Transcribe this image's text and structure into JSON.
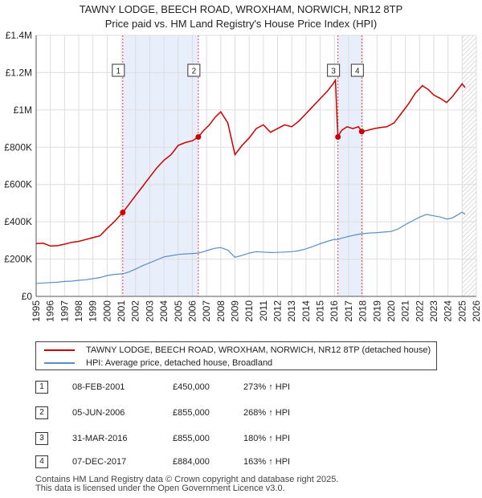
{
  "header": {
    "title_line1": "TAWNY LODGE, BEECH ROAD, WROXHAM, NORWICH, NR12 8TP",
    "title_line2": "Price paid vs. HM Land Registry's House Price Index (HPI)"
  },
  "chart_data": {
    "type": "line",
    "x_range": [
      1995,
      2026
    ],
    "ylim": [
      0,
      1400000
    ],
    "y_ticks": [
      {
        "value": 0,
        "label": "£0"
      },
      {
        "value": 200000,
        "label": "£200K"
      },
      {
        "value": 400000,
        "label": "£400K"
      },
      {
        "value": 600000,
        "label": "£600K"
      },
      {
        "value": 800000,
        "label": "£800K"
      },
      {
        "value": 1000000,
        "label": "£1M"
      },
      {
        "value": 1200000,
        "label": "£1.2M"
      },
      {
        "value": 1400000,
        "label": "£1.4M"
      }
    ],
    "x_ticks": [
      "1995",
      "1996",
      "1997",
      "1998",
      "1999",
      "2000",
      "2001",
      "2002",
      "2003",
      "2004",
      "2005",
      "2006",
      "2007",
      "2008",
      "2009",
      "2010",
      "2011",
      "2012",
      "2013",
      "2014",
      "2015",
      "2016",
      "2017",
      "2018",
      "2019",
      "2020",
      "2021",
      "2022",
      "2023",
      "2024",
      "2025",
      "2026"
    ],
    "grid": true,
    "shaded_ranges": [
      [
        2001.1,
        2006.42
      ],
      [
        2016.25,
        2017.93
      ]
    ],
    "future_start": 2025.0,
    "series": [
      {
        "name": "TAWNY LODGE, BEECH ROAD, WROXHAM, NORWICH, NR12 8TP (detached house)",
        "color": "#cc0000",
        "points": [
          [
            1995.0,
            283000
          ],
          [
            1995.5,
            285000
          ],
          [
            1996.0,
            270000
          ],
          [
            1996.5,
            272000
          ],
          [
            1997.0,
            280000
          ],
          [
            1997.5,
            290000
          ],
          [
            1998.0,
            295000
          ],
          [
            1998.5,
            305000
          ],
          [
            1999.0,
            315000
          ],
          [
            1999.5,
            325000
          ],
          [
            2000.0,
            365000
          ],
          [
            2000.5,
            400000
          ],
          [
            2001.1,
            450000
          ],
          [
            2001.5,
            490000
          ],
          [
            2002.0,
            540000
          ],
          [
            2002.5,
            590000
          ],
          [
            2003.0,
            640000
          ],
          [
            2003.5,
            690000
          ],
          [
            2004.0,
            730000
          ],
          [
            2004.5,
            760000
          ],
          [
            2005.0,
            810000
          ],
          [
            2005.5,
            825000
          ],
          [
            2006.0,
            835000
          ],
          [
            2006.42,
            855000
          ],
          [
            2006.8,
            890000
          ],
          [
            2007.2,
            920000
          ],
          [
            2007.6,
            960000
          ],
          [
            2008.0,
            990000
          ],
          [
            2008.5,
            930000
          ],
          [
            2009.0,
            760000
          ],
          [
            2009.5,
            810000
          ],
          [
            2010.0,
            850000
          ],
          [
            2010.5,
            900000
          ],
          [
            2011.0,
            920000
          ],
          [
            2011.5,
            880000
          ],
          [
            2012.0,
            900000
          ],
          [
            2012.5,
            920000
          ],
          [
            2013.0,
            910000
          ],
          [
            2013.5,
            940000
          ],
          [
            2014.0,
            980000
          ],
          [
            2014.5,
            1020000
          ],
          [
            2015.0,
            1060000
          ],
          [
            2015.5,
            1100000
          ],
          [
            2015.9,
            1140000
          ],
          [
            2016.08,
            1160000
          ],
          [
            2016.15,
            1020000
          ],
          [
            2016.25,
            855000
          ],
          [
            2016.5,
            890000
          ],
          [
            2016.9,
            910000
          ],
          [
            2017.3,
            900000
          ],
          [
            2017.7,
            910000
          ],
          [
            2017.93,
            884000
          ],
          [
            2018.3,
            890000
          ],
          [
            2018.8,
            900000
          ],
          [
            2019.2,
            905000
          ],
          [
            2019.7,
            910000
          ],
          [
            2020.2,
            930000
          ],
          [
            2020.7,
            980000
          ],
          [
            2021.2,
            1030000
          ],
          [
            2021.7,
            1090000
          ],
          [
            2022.2,
            1130000
          ],
          [
            2022.6,
            1110000
          ],
          [
            2023.0,
            1080000
          ],
          [
            2023.5,
            1060000
          ],
          [
            2023.9,
            1040000
          ],
          [
            2024.3,
            1070000
          ],
          [
            2024.7,
            1110000
          ],
          [
            2025.0,
            1140000
          ],
          [
            2025.2,
            1120000
          ]
        ]
      },
      {
        "name": "HPI: Average price, detached house, Broadland",
        "color": "#5b8ec6",
        "points": [
          [
            1995.0,
            70000
          ],
          [
            1995.5,
            72000
          ],
          [
            1996.0,
            74000
          ],
          [
            1996.5,
            76000
          ],
          [
            1997.0,
            80000
          ],
          [
            1997.5,
            82000
          ],
          [
            1998.0,
            86000
          ],
          [
            1998.5,
            89000
          ],
          [
            1999.0,
            95000
          ],
          [
            1999.5,
            101000
          ],
          [
            2000.0,
            112000
          ],
          [
            2000.5,
            118000
          ],
          [
            2001.1,
            121000
          ],
          [
            2001.5,
            130000
          ],
          [
            2002.0,
            146000
          ],
          [
            2002.5,
            165000
          ],
          [
            2003.0,
            180000
          ],
          [
            2003.5,
            196000
          ],
          [
            2004.0,
            212000
          ],
          [
            2004.5,
            218000
          ],
          [
            2005.0,
            225000
          ],
          [
            2005.5,
            228000
          ],
          [
            2006.0,
            230000
          ],
          [
            2006.42,
            232000
          ],
          [
            2006.8,
            240000
          ],
          [
            2007.2,
            250000
          ],
          [
            2007.6,
            258000
          ],
          [
            2008.0,
            262000
          ],
          [
            2008.5,
            248000
          ],
          [
            2009.0,
            210000
          ],
          [
            2009.5,
            220000
          ],
          [
            2010.0,
            232000
          ],
          [
            2010.5,
            240000
          ],
          [
            2011.0,
            238000
          ],
          [
            2011.5,
            235000
          ],
          [
            2012.0,
            236000
          ],
          [
            2012.5,
            238000
          ],
          [
            2013.0,
            240000
          ],
          [
            2013.5,
            245000
          ],
          [
            2014.0,
            255000
          ],
          [
            2014.5,
            268000
          ],
          [
            2015.0,
            282000
          ],
          [
            2015.5,
            295000
          ],
          [
            2016.0,
            306000
          ],
          [
            2016.25,
            305000
          ],
          [
            2016.5,
            312000
          ],
          [
            2017.0,
            322000
          ],
          [
            2017.5,
            330000
          ],
          [
            2017.93,
            336000
          ],
          [
            2018.5,
            340000
          ],
          [
            2019.0,
            342000
          ],
          [
            2019.5,
            345000
          ],
          [
            2020.0,
            348000
          ],
          [
            2020.5,
            362000
          ],
          [
            2021.0,
            385000
          ],
          [
            2021.5,
            405000
          ],
          [
            2022.0,
            425000
          ],
          [
            2022.5,
            440000
          ],
          [
            2023.0,
            432000
          ],
          [
            2023.5,
            425000
          ],
          [
            2023.9,
            415000
          ],
          [
            2024.3,
            420000
          ],
          [
            2024.7,
            438000
          ],
          [
            2025.0,
            452000
          ],
          [
            2025.2,
            440000
          ]
        ]
      }
    ],
    "sales": [
      {
        "label": "1",
        "x": 2001.1,
        "value": 450000
      },
      {
        "label": "2",
        "x": 2006.42,
        "value": 855000
      },
      {
        "label": "3",
        "x": 2016.25,
        "value": 855000
      },
      {
        "label": "4",
        "x": 2017.93,
        "value": 884000
      }
    ]
  },
  "legend": {
    "property_label": "TAWNY LODGE, BEECH ROAD, WROXHAM, NORWICH, NR12 8TP (detached house)",
    "hpi_label": "HPI: Average price, detached house, Broadland",
    "property_color": "#cc0000",
    "hpi_color": "#5b8ec6"
  },
  "sales_table": [
    {
      "num": "1",
      "date": "08-FEB-2001",
      "price": "£450,000",
      "hpi": "273% ↑ HPI"
    },
    {
      "num": "2",
      "date": "05-JUN-2006",
      "price": "£855,000",
      "hpi": "268% ↑ HPI"
    },
    {
      "num": "3",
      "date": "31-MAR-2016",
      "price": "£855,000",
      "hpi": "180% ↑ HPI"
    },
    {
      "num": "4",
      "date": "07-DEC-2017",
      "price": "£884,000",
      "hpi": "163% ↑ HPI"
    }
  ],
  "footer": {
    "line1": "Contains HM Land Registry data © Crown copyright and database right 2025.",
    "line2": "This data is licensed under the Open Government Licence v3.0."
  }
}
